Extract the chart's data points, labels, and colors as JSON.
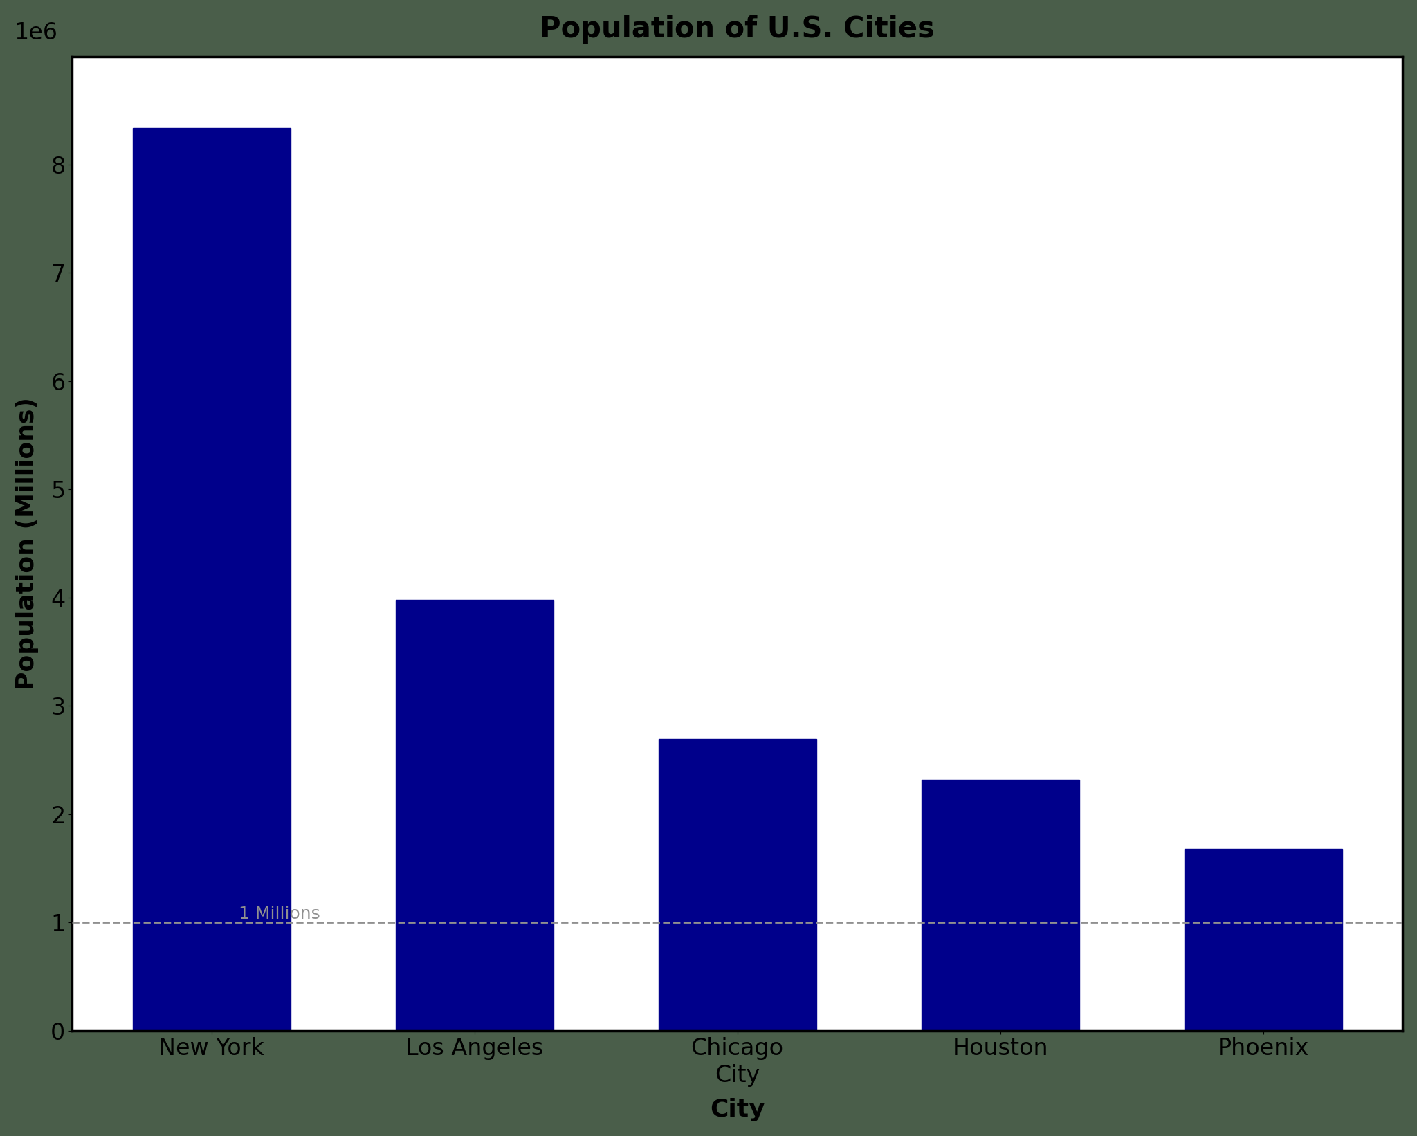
{
  "title": "Population of U.S. Cities",
  "xlabel": "City",
  "ylabel": "Population (Millions)",
  "categories": [
    "New York",
    "Los Angeles",
    "Chicago\nCity",
    "Houston",
    "Phoenix"
  ],
  "values": [
    8336817,
    3979576,
    2693976,
    2320268,
    1680992
  ],
  "bar_color": "#00008B",
  "background_color": "#4a5e4a",
  "plot_bg_color": "#ffffff",
  "ylim": [
    0,
    9000000
  ],
  "yticks": [
    0,
    1000000,
    2000000,
    3000000,
    4000000,
    5000000,
    6000000,
    7000000,
    8000000
  ],
  "hline_y": 1000000,
  "hline_label": "1 Millions",
  "hline_color": "#909090",
  "title_fontsize": 30,
  "axis_label_fontsize": 26,
  "tick_fontsize": 24,
  "hline_label_fontsize": 18,
  "spine_linewidth": 2.5
}
